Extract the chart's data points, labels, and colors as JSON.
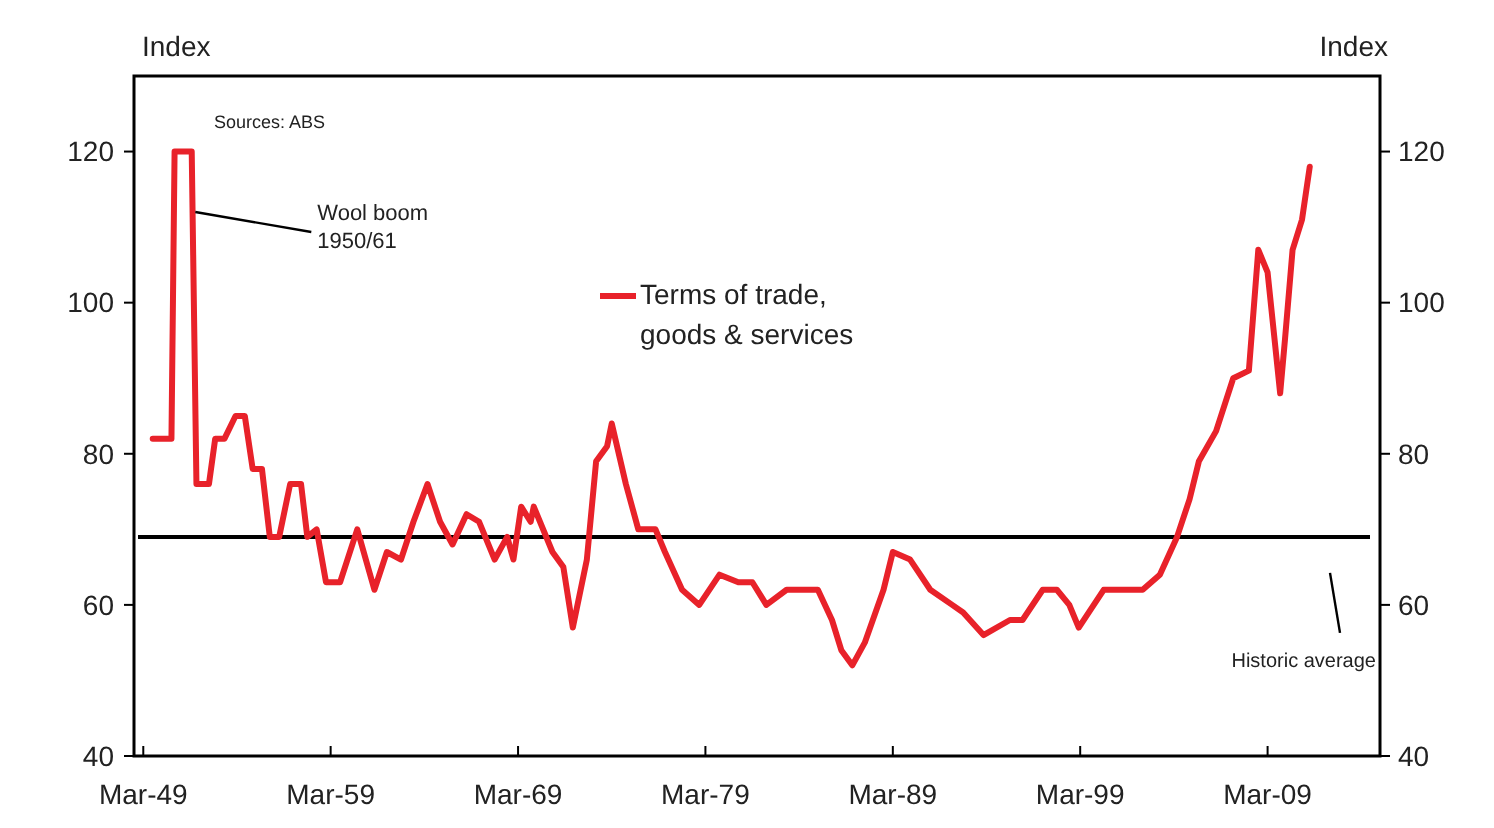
{
  "chart_data": {
    "type": "line",
    "ylabel": "Index",
    "y2label": "Index",
    "x": [
      "1949-09",
      "1950-09",
      "1950-11",
      "1951-10",
      "1952-01",
      "1952-09",
      "1953-01",
      "1953-07",
      "1954-02",
      "1954-08",
      "1955-01",
      "1955-07",
      "1955-12",
      "1956-06",
      "1957-01",
      "1957-08",
      "1957-12",
      "1958-06",
      "1958-12",
      "1959-09",
      "1960-08",
      "1961-07",
      "1962-03",
      "1962-12",
      "1963-08",
      "1964-05",
      "1965-01",
      "1965-09",
      "1966-06",
      "1967-02",
      "1967-12",
      "1968-08",
      "1968-12",
      "1969-05",
      "1969-11",
      "1970-01",
      "1971-01",
      "1971-08",
      "1972-02",
      "1972-11",
      "1973-05",
      "1973-12",
      "1974-03",
      "1974-12",
      "1975-08",
      "1976-07",
      "1977-01",
      "1977-12",
      "1978-11",
      "1979-12",
      "1980-12",
      "1981-09",
      "1982-06",
      "1983-07",
      "1985-03",
      "1985-12",
      "1986-06",
      "1987-01",
      "1987-09",
      "1988-09",
      "1989-03",
      "1990-02",
      "1991-03",
      "1992-05",
      "1992-12",
      "1994-01",
      "1995-06",
      "1996-02",
      "1997-03",
      "1997-12",
      "1998-08",
      "1999-02",
      "2000-06",
      "2001-06",
      "2002-07",
      "2003-06",
      "2004-05",
      "2005-01",
      "2005-07",
      "2006-06",
      "2007-05",
      "2008-03",
      "2008-09",
      "2009-03",
      "2009-11",
      "2010-02",
      "2010-07",
      "2011-01",
      "2011-06"
    ],
    "series": [
      {
        "name": "Terms of trade, goods & services",
        "color": "#e8222a",
        "values": [
          82,
          82,
          120,
          120,
          76,
          76,
          82,
          82,
          85,
          85,
          78,
          78,
          69,
          69,
          76,
          76,
          69,
          70,
          63,
          63,
          70,
          62,
          67,
          66,
          71,
          76,
          71,
          68,
          72,
          71,
          66,
          69,
          66,
          73,
          71,
          73,
          67,
          65,
          57,
          66,
          79,
          81,
          84,
          76,
          70,
          70,
          67,
          62,
          60,
          64,
          63,
          63,
          60,
          62,
          62,
          58,
          54,
          52,
          55,
          62,
          67,
          66,
          62,
          60,
          59,
          56,
          58,
          58,
          62,
          62,
          60,
          57,
          62,
          62,
          62,
          64,
          69,
          74,
          79,
          83,
          90,
          91,
          107,
          104,
          88,
          95,
          107,
          111,
          118
        ]
      }
    ],
    "xlim": [
      "1948-09",
      "2015-03"
    ],
    "xticks": [
      {
        "value": "1949-03",
        "label": "Mar-49"
      },
      {
        "value": "1959-03",
        "label": "Mar-59"
      },
      {
        "value": "1969-03",
        "label": "Mar-69"
      },
      {
        "value": "1979-03",
        "label": "Mar-79"
      },
      {
        "value": "1989-03",
        "label": "Mar-89"
      },
      {
        "value": "1999-03",
        "label": "Mar-99"
      },
      {
        "value": "2009-03",
        "label": "Mar-09"
      }
    ],
    "ylim": [
      40,
      130
    ],
    "yticks": [
      40,
      60,
      80,
      100,
      120
    ],
    "y2lim": [
      40,
      130
    ],
    "y2ticks": [
      40,
      60,
      80,
      100,
      120
    ],
    "ref_lines": [
      {
        "axis": "y",
        "value": 69,
        "label": "Historic average",
        "color": "#000000"
      }
    ],
    "annotations": [
      "Sources: ABS",
      {
        "text": "Wool boom\n1950/61",
        "x": "1951-11",
        "y": 112
      }
    ],
    "legend": "top",
    "grid": false,
    "marker": "none",
    "line_style": "solid"
  }
}
